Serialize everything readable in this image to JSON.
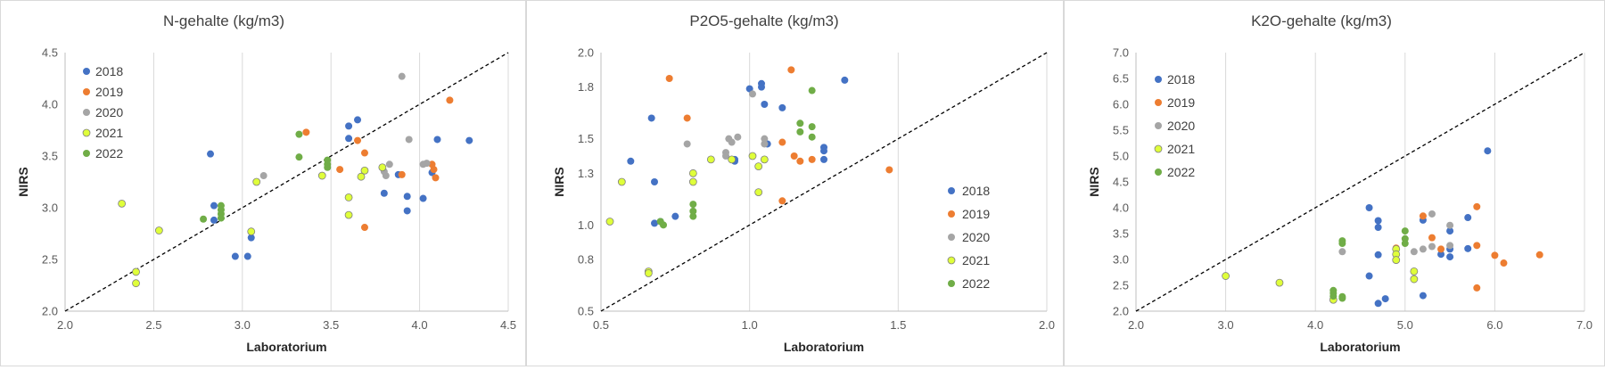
{
  "colors": {
    "2018": "#4472C4",
    "2019": "#ED7D31",
    "2020": "#A5A5A5",
    "2021": "#DFFF3A",
    "2022": "#70AD47",
    "outline_2021": "#7F7F7F",
    "gridline": "#D9D9D9",
    "diagonal": "#000000"
  },
  "chart_data": [
    {
      "type": "scatter",
      "title": "N-gehalte (kg/m3)",
      "xlabel": "Laboratorium",
      "ylabel": "NIRS",
      "xlim": [
        2.0,
        4.5
      ],
      "ylim": [
        2.0,
        4.5
      ],
      "xticks": [
        "2.0",
        "2.5",
        "3.0",
        "3.5",
        "4.0",
        "4.5"
      ],
      "yticks": [
        "2.0",
        "2.5",
        "3.0",
        "3.5",
        "4.0",
        "4.5"
      ],
      "grid": "vertical",
      "diagonal": "y=x dashed",
      "legend": "top-left",
      "series": [
        {
          "name": "2018",
          "points": [
            [
              2.82,
              3.52
            ],
            [
              2.84,
              3.02
            ],
            [
              2.84,
              2.88
            ],
            [
              2.96,
              2.53
            ],
            [
              3.03,
              2.53
            ],
            [
              3.05,
              2.71
            ],
            [
              3.6,
              3.79
            ],
            [
              3.6,
              3.67
            ],
            [
              3.65,
              3.85
            ],
            [
              3.8,
              3.14
            ],
            [
              3.88,
              3.32
            ],
            [
              3.93,
              3.11
            ],
            [
              3.93,
              2.97
            ],
            [
              4.02,
              3.09
            ],
            [
              4.07,
              3.34
            ],
            [
              4.1,
              3.66
            ],
            [
              4.28,
              3.65
            ]
          ]
        },
        {
          "name": "2019",
          "points": [
            [
              3.36,
              3.73
            ],
            [
              3.55,
              3.37
            ],
            [
              3.65,
              3.65
            ],
            [
              3.69,
              3.53
            ],
            [
              3.69,
              2.81
            ],
            [
              3.9,
              3.32
            ],
            [
              4.07,
              3.42
            ],
            [
              4.08,
              3.37
            ],
            [
              4.09,
              3.29
            ],
            [
              4.17,
              4.04
            ]
          ]
        },
        {
          "name": "2020",
          "points": [
            [
              3.12,
              3.31
            ],
            [
              3.79,
              3.39
            ],
            [
              3.8,
              3.35
            ],
            [
              3.81,
              3.31
            ],
            [
              3.83,
              3.42
            ],
            [
              3.9,
              4.27
            ],
            [
              3.94,
              3.66
            ],
            [
              4.02,
              3.42
            ],
            [
              4.04,
              3.43
            ]
          ]
        },
        {
          "name": "2021",
          "points": [
            [
              2.32,
              3.04
            ],
            [
              2.4,
              2.38
            ],
            [
              2.4,
              2.27
            ],
            [
              2.53,
              2.78
            ],
            [
              3.05,
              2.77
            ],
            [
              3.08,
              3.25
            ],
            [
              3.45,
              3.31
            ],
            [
              3.6,
              3.1
            ],
            [
              3.6,
              2.93
            ],
            [
              3.67,
              3.3
            ],
            [
              3.69,
              3.36
            ],
            [
              3.79,
              3.39
            ]
          ]
        },
        {
          "name": "2022",
          "points": [
            [
              2.78,
              2.89
            ],
            [
              2.88,
              3.02
            ],
            [
              2.88,
              2.98
            ],
            [
              2.88,
              2.94
            ],
            [
              2.88,
              2.9
            ],
            [
              3.32,
              3.71
            ],
            [
              3.32,
              3.49
            ],
            [
              3.48,
              3.46
            ],
            [
              3.48,
              3.42
            ],
            [
              3.48,
              3.39
            ]
          ]
        }
      ]
    },
    {
      "type": "scatter",
      "title": "P2O5-gehalte (kg/m3)",
      "xlabel": "Laboratorium",
      "ylabel": "NIRS",
      "xlim": [
        0.5,
        2.0
      ],
      "ylim": [
        0.5,
        2.0
      ],
      "xticks": [
        "0.5",
        "1.0",
        "1.5",
        "2.0"
      ],
      "yticks": [
        "0.5",
        "0.8",
        "1.0",
        "1.3",
        "1.5",
        "1.8",
        "2.0"
      ],
      "grid": "vertical",
      "diagonal": "y=x dashed",
      "legend": "right",
      "series": [
        {
          "name": "2018",
          "points": [
            [
              0.6,
              1.37
            ],
            [
              0.67,
              1.62
            ],
            [
              0.68,
              1.25
            ],
            [
              0.68,
              1.01
            ],
            [
              0.7,
              1.02
            ],
            [
              0.75,
              1.05
            ],
            [
              0.95,
              1.37
            ],
            [
              0.95,
              1.38
            ],
            [
              1.0,
              1.79
            ],
            [
              1.04,
              1.8
            ],
            [
              1.04,
              1.82
            ],
            [
              1.05,
              1.7
            ],
            [
              1.06,
              1.47
            ],
            [
              1.11,
              1.68
            ],
            [
              1.25,
              1.45
            ],
            [
              1.25,
              1.43
            ],
            [
              1.25,
              1.38
            ],
            [
              1.32,
              1.84
            ]
          ]
        },
        {
          "name": "2019",
          "points": [
            [
              0.73,
              1.85
            ],
            [
              0.79,
              1.62
            ],
            [
              1.11,
              1.48
            ],
            [
              1.11,
              1.14
            ],
            [
              1.14,
              1.9
            ],
            [
              1.15,
              1.4
            ],
            [
              1.17,
              1.37
            ],
            [
              1.21,
              1.38
            ],
            [
              1.47,
              1.32
            ]
          ]
        },
        {
          "name": "2020",
          "points": [
            [
              0.79,
              1.47
            ],
            [
              0.92,
              1.42
            ],
            [
              0.92,
              1.4
            ],
            [
              0.93,
              1.5
            ],
            [
              0.94,
              1.48
            ],
            [
              0.96,
              1.51
            ],
            [
              1.01,
              1.76
            ],
            [
              1.05,
              1.5
            ],
            [
              1.05,
              1.47
            ]
          ]
        },
        {
          "name": "2021",
          "points": [
            [
              0.53,
              1.02
            ],
            [
              0.57,
              1.25
            ],
            [
              0.66,
              0.73
            ],
            [
              0.66,
              0.72
            ],
            [
              0.81,
              1.3
            ],
            [
              0.81,
              1.25
            ],
            [
              0.87,
              1.38
            ],
            [
              0.94,
              1.38
            ],
            [
              1.01,
              1.4
            ],
            [
              1.03,
              1.34
            ],
            [
              1.03,
              1.19
            ],
            [
              1.05,
              1.38
            ]
          ]
        },
        {
          "name": "2022",
          "points": [
            [
              0.7,
              1.02
            ],
            [
              0.71,
              1.0
            ],
            [
              0.81,
              1.12
            ],
            [
              0.81,
              1.08
            ],
            [
              0.81,
              1.05
            ],
            [
              1.17,
              1.59
            ],
            [
              1.17,
              1.54
            ],
            [
              1.21,
              1.78
            ],
            [
              1.21,
              1.57
            ],
            [
              1.21,
              1.51
            ]
          ]
        }
      ]
    },
    {
      "type": "scatter",
      "title": "K2O-gehalte (kg/m3)",
      "xlabel": "Laboratorium",
      "ylabel": "NIRS",
      "xlim": [
        2.0,
        7.0
      ],
      "ylim": [
        2.0,
        7.0
      ],
      "xticks": [
        "2.0",
        "3.0",
        "4.0",
        "5.0",
        "6.0",
        "7.0"
      ],
      "yticks": [
        "2.0",
        "2.5",
        "3.0",
        "3.5",
        "4.0",
        "4.5",
        "5.0",
        "5.5",
        "6.0",
        "6.5",
        "7.0"
      ],
      "grid": "vertical",
      "diagonal": "y=x dashed",
      "legend": "top-left",
      "series": [
        {
          "name": "2018",
          "points": [
            [
              4.6,
              2.68
            ],
            [
              4.6,
              4.0
            ],
            [
              4.7,
              3.75
            ],
            [
              4.7,
              3.62
            ],
            [
              4.7,
              3.09
            ],
            [
              4.7,
              2.15
            ],
            [
              4.78,
              2.24
            ],
            [
              5.2,
              3.76
            ],
            [
              5.2,
              2.3
            ],
            [
              5.4,
              3.1
            ],
            [
              5.5,
              3.55
            ],
            [
              5.5,
              3.2
            ],
            [
              5.5,
              3.05
            ],
            [
              5.7,
              3.81
            ],
            [
              5.7,
              3.21
            ],
            [
              5.92,
              5.1
            ]
          ]
        },
        {
          "name": "2019",
          "points": [
            [
              4.9,
              3.22
            ],
            [
              5.2,
              3.84
            ],
            [
              5.3,
              3.42
            ],
            [
              5.4,
              3.2
            ],
            [
              5.8,
              4.02
            ],
            [
              5.8,
              3.27
            ],
            [
              5.8,
              2.45
            ],
            [
              6.0,
              3.08
            ],
            [
              6.1,
              2.93
            ],
            [
              6.5,
              3.09
            ]
          ]
        },
        {
          "name": "2020",
          "points": [
            [
              4.3,
              3.15
            ],
            [
              5.1,
              3.15
            ],
            [
              5.2,
              3.2
            ],
            [
              5.3,
              3.88
            ],
            [
              5.3,
              3.25
            ],
            [
              5.5,
              3.66
            ],
            [
              5.5,
              3.27
            ]
          ]
        },
        {
          "name": "2021",
          "points": [
            [
              3.0,
              2.68
            ],
            [
              3.6,
              2.55
            ],
            [
              4.2,
              2.22
            ],
            [
              4.9,
              3.2
            ],
            [
              4.9,
              3.1
            ],
            [
              4.9,
              2.99
            ],
            [
              5.1,
              2.77
            ],
            [
              5.1,
              2.62
            ]
          ]
        },
        {
          "name": "2022",
          "points": [
            [
              4.2,
              2.4
            ],
            [
              4.2,
              2.35
            ],
            [
              4.2,
              2.29
            ],
            [
              4.3,
              3.36
            ],
            [
              4.3,
              3.31
            ],
            [
              4.3,
              2.28
            ],
            [
              4.3,
              2.25
            ],
            [
              5.0,
              3.55
            ],
            [
              5.0,
              3.4
            ],
            [
              5.0,
              3.31
            ]
          ]
        }
      ]
    }
  ]
}
